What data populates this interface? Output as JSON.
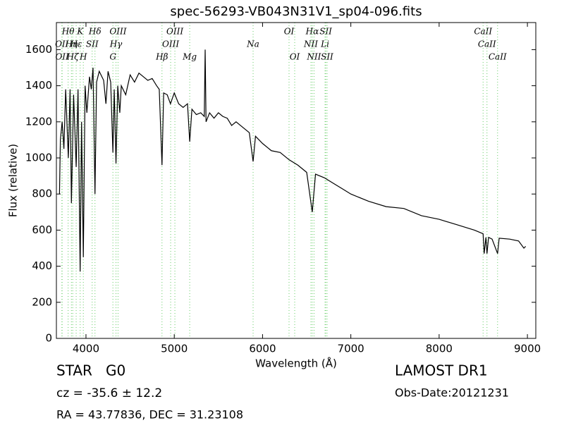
{
  "chart_data": {
    "type": "line",
    "title": "spec-56293-VB043N31V1_sp04-096.fits",
    "x_label": "Wavelength (Å)",
    "y_label": "Flux (relative)",
    "xlim": [
      3665,
      9095
    ],
    "ylim": [
      0,
      1750
    ],
    "xticks": [
      4000,
      5000,
      6000,
      7000,
      8000,
      9000
    ],
    "yticks": [
      0,
      200,
      400,
      600,
      800,
      1000,
      1200,
      1400,
      1600
    ],
    "color": "#000000",
    "line_color": "#66cc66",
    "x": [
      3700,
      3710,
      3730,
      3750,
      3770,
      3800,
      3820,
      3835,
      3860,
      3889,
      3910,
      3934,
      3950,
      3970,
      3990,
      4010,
      4040,
      4060,
      4080,
      4102,
      4120,
      4150,
      4200,
      4226,
      4250,
      4280,
      4305,
      4320,
      4340,
      4360,
      4383,
      4400,
      4450,
      4500,
      4550,
      4600,
      4650,
      4700,
      4750,
      4800,
      4830,
      4861,
      4880,
      4920,
      4957,
      5000,
      5050,
      5100,
      5150,
      5175,
      5200,
      5250,
      5300,
      5340,
      5350,
      5360,
      5400,
      5450,
      5500,
      5550,
      5600,
      5650,
      5700,
      5750,
      5800,
      5850,
      5893,
      5920,
      6000,
      6100,
      6200,
      6300,
      6400,
      6450,
      6500,
      6563,
      6600,
      6700,
      6800,
      6900,
      7000,
      7200,
      7400,
      7600,
      7800,
      8000,
      8200,
      8400,
      8498,
      8510,
      8530,
      8542,
      8560,
      8600,
      8662,
      8680,
      8800,
      8900,
      8960,
      8980
    ],
    "values": [
      800,
      1100,
      1200,
      1050,
      1380,
      1000,
      1380,
      750,
      1350,
      950,
      1380,
      370,
      1200,
      450,
      1400,
      1250,
      1450,
      1380,
      1500,
      800,
      1420,
      1480,
      1430,
      1300,
      1480,
      1420,
      1030,
      1380,
      970,
      1400,
      1250,
      1400,
      1350,
      1460,
      1420,
      1470,
      1450,
      1430,
      1440,
      1400,
      1380,
      960,
      1360,
      1350,
      1300,
      1360,
      1300,
      1280,
      1300,
      1090,
      1270,
      1240,
      1250,
      1230,
      1600,
      1200,
      1250,
      1220,
      1250,
      1230,
      1220,
      1180,
      1200,
      1180,
      1160,
      1140,
      980,
      1120,
      1080,
      1040,
      1030,
      990,
      960,
      940,
      920,
      700,
      910,
      890,
      860,
      830,
      800,
      760,
      730,
      720,
      680,
      660,
      630,
      600,
      580,
      470,
      560,
      470,
      560,
      550,
      470,
      555,
      550,
      540,
      500,
      510
    ],
    "spectral_lines": [
      [
        {
          "label": "Hθ",
          "wavelength": 3798
        },
        {
          "label": "K",
          "wavelength": 3934
        },
        {
          "label": "Hδ",
          "wavelength": 4102
        },
        {
          "label": "OIII",
          "wavelength": 4363
        },
        {
          "label": "OIII",
          "wavelength": 5007
        },
        {
          "label": "OI",
          "wavelength": 6300
        },
        {
          "label": "Hα",
          "wavelength": 6563
        },
        {
          "label": "SII",
          "wavelength": 6716
        },
        {
          "label": "CaII",
          "wavelength": 8498
        }
      ],
      [
        {
          "label": "OII",
          "wavelength": 3727
        },
        {
          "label": "Hη",
          "wavelength": 3835
        },
        {
          "label": "Hε",
          "wavelength": 3889
        },
        {
          "label": "SII",
          "wavelength": 4070
        },
        {
          "label": "Hγ",
          "wavelength": 4340
        },
        {
          "label": "OIII",
          "wavelength": 4959
        },
        {
          "label": "Na",
          "wavelength": 5893
        },
        {
          "label": "NII",
          "wavelength": 6548
        },
        {
          "label": "Li",
          "wavelength": 6708
        },
        {
          "label": "CaII",
          "wavelength": 8542
        }
      ],
      [
        {
          "label": "OII",
          "wavelength": 3730
        },
        {
          "label": "Hζ",
          "wavelength": 3850
        },
        {
          "label": "H",
          "wavelength": 3970
        },
        {
          "label": "G",
          "wavelength": 4305
        },
        {
          "label": "Hβ",
          "wavelength": 4861
        },
        {
          "label": "Mg",
          "wavelength": 5175
        },
        {
          "label": "OI",
          "wavelength": 6364
        },
        {
          "label": "NII",
          "wavelength": 6583
        },
        {
          "label": "SII",
          "wavelength": 6731
        },
        {
          "label": "CaII",
          "wavelength": 8662
        }
      ]
    ],
    "annotations": [
      "STAR   G0",
      "cz = -35.6 ± 12.2",
      "RA = 43.77836, DEC = 31.23108",
      "LAMOST DR1",
      "Obs-Date:20121231"
    ]
  }
}
